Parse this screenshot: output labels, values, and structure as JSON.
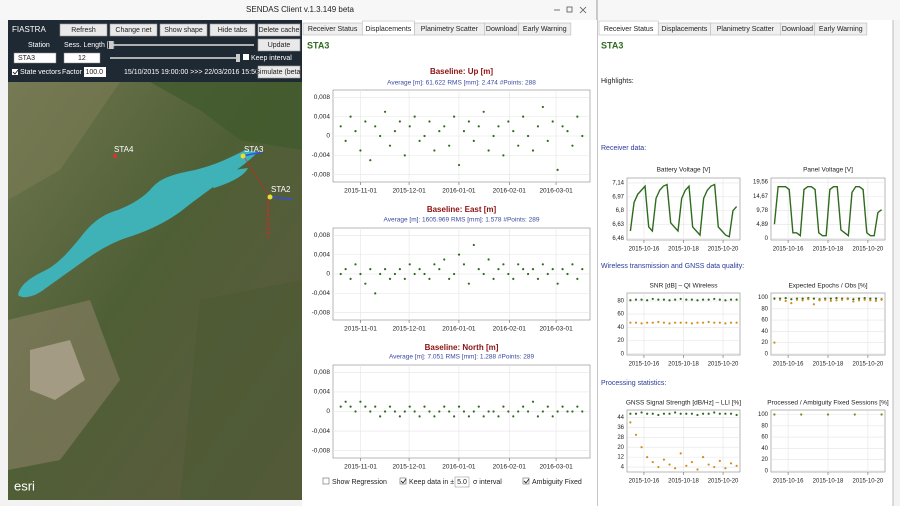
{
  "window": {
    "title": "SENDAS Client v.1.3.149 beta"
  },
  "toolbar": {
    "app_name": "FIASTRA",
    "buttons": [
      "Refresh",
      "Change net",
      "Show shape",
      "Hide tabs",
      "Delete cache"
    ],
    "station_label": "Station",
    "station_value": "STA3",
    "session_label": "Sess. Length [h]",
    "session_value": "12",
    "update": "Update",
    "keep_interval": "Keep interval",
    "state_vectors": "State vectors",
    "factor_label": "Factor",
    "factor_value": "100.0",
    "date_range": "15/10/2015 19:00:00 >>> 22/03/2016 15:50:24",
    "simulate": "Simulate (beta)"
  },
  "map": {
    "stations": [
      "STA4",
      "STA3",
      "STA2"
    ],
    "logo": "esri"
  },
  "displacements": {
    "tabs": [
      "Receiver Status",
      "Displacements",
      "Planimetry Scatter",
      "Download",
      "Early Warning"
    ],
    "station": "STA3",
    "charts": [
      {
        "type": "scatter",
        "title": "Baseline: Up [m]",
        "subtitle": "Average [m]: 61.622 RMS [mm]: 2.474 #Points: 288",
        "ylim": [
          -0.0095,
          0.0095
        ],
        "yticks": [
          {
            "value": 0.008,
            "label": "0,008"
          },
          {
            "value": 0.004,
            "label": "0,004"
          },
          0,
          {
            "value": -0.004,
            "label": "-0,004"
          },
          {
            "value": -0.008,
            "label": "-0,008"
          }
        ],
        "xticks": [
          "2015-11-01",
          "2015-12-01",
          "2016-01-01",
          "2016-02-01",
          "2016-03-01"
        ],
        "series": [
          {
            "color": "#2e6b1f",
            "values": [
              0.002,
              -0.001,
              0.004,
              0.001,
              -0.003,
              0.003,
              -0.005,
              0.002,
              0.0,
              0.005,
              -0.002,
              0.001,
              0.003,
              -0.004,
              0.002,
              0.004,
              -0.001,
              0.0,
              0.003,
              -0.003,
              0.001,
              0.002,
              -0.002,
              0.004,
              -0.006,
              0.001,
              0.003,
              -0.001,
              0.002,
              0.005,
              -0.003,
              0.0,
              0.002,
              -0.004,
              0.003,
              0.001,
              -0.002,
              0.004,
              0.0,
              -0.003,
              0.002,
              0.006,
              -0.001,
              0.003,
              -0.007,
              0.002,
              0.001,
              -0.002,
              0.004,
              0.0
            ]
          }
        ]
      },
      {
        "type": "scatter",
        "title": "Baseline: East [m]",
        "subtitle": "Average [m]: 1605.969 RMS [mm]: 1.578 #Points: 289",
        "ylim": [
          -0.0095,
          0.0095
        ],
        "yticks": [
          {
            "value": 0.008,
            "label": "0,008"
          },
          {
            "value": 0.004,
            "label": "0,004"
          },
          0,
          {
            "value": -0.004,
            "label": "-0,004"
          },
          {
            "value": -0.008,
            "label": "-0,008"
          }
        ],
        "xticks": [
          "2015-11-01",
          "2015-12-01",
          "2016-01-01",
          "2016-02-01",
          "2016-03-01"
        ],
        "series": [
          {
            "color": "#2e6b1f",
            "values": [
              0.0,
              0.001,
              -0.001,
              0.002,
              0.0,
              -0.002,
              0.001,
              -0.004,
              0.0,
              0.001,
              -0.001,
              0.0,
              0.001,
              -0.001,
              0.002,
              0.0,
              0.001,
              0.0,
              -0.001,
              0.002,
              0.001,
              0.003,
              -0.001,
              0.0,
              0.004,
              0.002,
              -0.002,
              0.006,
              0.001,
              0.0,
              0.003,
              -0.001,
              0.001,
              0.002,
              0.0,
              -0.001,
              0.002,
              0.001,
              0.0,
              0.001,
              -0.001,
              0.002,
              0.0,
              0.001,
              -0.002,
              0.001,
              0.0,
              0.002,
              -0.001,
              0.001
            ]
          }
        ]
      },
      {
        "type": "scatter",
        "title": "Baseline: North [m]",
        "subtitle": "Average [m]: 7.051 RMS [mm]: 1.288 #Points: 289",
        "ylim": [
          -0.0095,
          0.0095
        ],
        "yticks": [
          {
            "value": 0.008,
            "label": "0,008"
          },
          {
            "value": 0.004,
            "label": "0,004"
          },
          0,
          {
            "value": -0.004,
            "label": "-0,004"
          },
          {
            "value": -0.008,
            "label": "-0,008"
          }
        ],
        "xticks": [
          "2015-11-01",
          "2015-12-01",
          "2016-01-01",
          "2016-02-01",
          "2016-03-01"
        ],
        "series": [
          {
            "color": "#2e6b1f",
            "values": [
              0.001,
              0.002,
              0.001,
              0.0,
              0.002,
              0.001,
              0.0,
              0.001,
              -0.001,
              0.0,
              0.001,
              0.0,
              -0.001,
              0.0,
              0.001,
              0.0,
              -0.001,
              0.001,
              0.0,
              -0.001,
              0.0,
              0.001,
              0.0,
              -0.001,
              0.001,
              0.0,
              -0.001,
              0.0,
              0.001,
              -0.001,
              0.0,
              0.0,
              -0.001,
              0.001,
              0.0,
              -0.001,
              0.0,
              0.001,
              0.0,
              0.002,
              -0.001,
              0.0,
              0.001,
              -0.001,
              0.0,
              0.001,
              0.0,
              0.0,
              0.001,
              0.0
            ]
          }
        ]
      }
    ],
    "footer": {
      "show_regression": "Show Regression",
      "keep_data": "Keep data in ±",
      "sigma": "5.0",
      "sigma_interval": "σ interval",
      "ambiguity_fixed": "Ambiguity Fixed"
    }
  },
  "status": {
    "tabs": [
      "Receiver Status",
      "Displacements",
      "Planimetry Scatter",
      "Download",
      "Early Warning"
    ],
    "station": "STA3",
    "highlights": "Highlights:",
    "sections": [
      "Receiver data:",
      "Wireless transmission and GNSS data quality:",
      "Processing statistics:"
    ],
    "charts": [
      {
        "type": "line",
        "title": "Battery Voltage [V]",
        "ylim": [
          6.44,
          7.2
        ],
        "yticks": [
          {
            "value": 7.14,
            "label": "7,14"
          },
          {
            "value": 6.97,
            "label": "6,97"
          },
          {
            "value": 6.8,
            "label": "6,8"
          },
          {
            "value": 6.63,
            "label": "6,63"
          },
          {
            "value": 6.46,
            "label": "6,46"
          }
        ],
        "xticks": [
          "2015-10-16",
          "2015-10-18",
          "2015-10-20"
        ],
        "series": [
          {
            "color": "#2e6b1f",
            "values": [
              6.55,
              6.9,
              7.0,
              7.05,
              7.1,
              6.6,
              6.55,
              6.95,
              7.05,
              7.1,
              7.12,
              6.65,
              6.6,
              6.55,
              6.95,
              7.05,
              7.1,
              6.6,
              6.55,
              6.5,
              6.95,
              7.05,
              7.1,
              7.12,
              6.6,
              6.55,
              6.5,
              6.48,
              6.8,
              6.85
            ]
          }
        ]
      },
      {
        "type": "line",
        "title": "Panel Voltage [V]",
        "ylim": [
          -0.5,
          21
        ],
        "yticks": [
          {
            "value": 19.56,
            "label": "19,56"
          },
          {
            "value": 14.67,
            "label": "14,67"
          },
          {
            "value": 9.78,
            "label": "9,78"
          },
          {
            "value": 4.89,
            "label": "4,89"
          },
          0
        ],
        "xticks": [
          "2015-10-16",
          "2015-10-18",
          "2015-10-20"
        ],
        "series": [
          {
            "color": "#2e6b1f",
            "values": [
              5,
              18,
              18,
              18,
              17,
              2,
              2,
              1,
              17,
              18,
              18,
              17,
              2,
              1,
              1,
              17,
              18,
              18,
              3,
              2,
              1,
              16,
              18,
              18,
              17,
              2,
              1,
              1,
              9,
              10
            ]
          }
        ]
      },
      {
        "type": "scatter",
        "title": "SNR [dB] – QI Wireless",
        "ylim": [
          -2,
          92
        ],
        "yticks": [
          80,
          60,
          40,
          20,
          0
        ],
        "xticks": [
          "2015-10-16",
          "2015-10-18",
          "2015-10-20"
        ],
        "series": [
          {
            "color": "#2e6b1f",
            "values": [
              81,
              82,
              82,
              81,
              83,
              82,
              82,
              81,
              82,
              83,
              82,
              82,
              81,
              82,
              82,
              83,
              82,
              81,
              82,
              82
            ]
          },
          {
            "color": "#d58a1a",
            "values": [
              47,
              47,
              46,
              47,
              47,
              48,
              47,
              46,
              47,
              47,
              47,
              46,
              47,
              47,
              48,
              47,
              47,
              46,
              47,
              47
            ]
          }
        ]
      },
      {
        "type": "scatter",
        "title": "Expected Epochs / Obs [%]",
        "ylim": [
          -2,
          108
        ],
        "yticks": [
          100,
          80,
          60,
          40,
          20,
          0
        ],
        "xticks": [
          "2015-10-16",
          "2015-10-18",
          "2015-10-20"
        ],
        "series": [
          {
            "color": "#2e6b1f",
            "values": [
              98,
              98,
              99,
              97,
              98,
              98,
              99,
              98,
              97,
              98,
              98,
              99,
              98,
              98,
              97,
              98,
              99,
              98,
              98,
              97
            ]
          },
          {
            "color": "#d58a1a",
            "values": [
              20,
              96,
              94,
              90,
              96,
              95,
              97,
              88,
              95,
              96,
              94,
              95,
              96,
              97,
              93,
              95,
              96,
              95,
              94,
              96
            ]
          }
        ]
      },
      {
        "type": "scatter",
        "title": "GNSS Signal Strength [dB/Hz] – LLI [%]",
        "ylim": [
          0,
          50
        ],
        "yticks": [
          44,
          36,
          28,
          20,
          12,
          4
        ],
        "xticks": [
          "2015-10-16",
          "2015-10-18",
          "2015-10-20"
        ],
        "series": [
          {
            "color": "#2e6b1f",
            "values": [
              47,
              47,
              48,
              47,
              47,
              46,
              47,
              47,
              48,
              47,
              47,
              47,
              46,
              47,
              47,
              48,
              47,
              47,
              47,
              46
            ]
          },
          {
            "color": "#d58a1a",
            "values": [
              40,
              30,
              20,
              12,
              8,
              4,
              10,
              6,
              3,
              15,
              5,
              8,
              2,
              12,
              6,
              4,
              9,
              3,
              7,
              5
            ]
          }
        ]
      },
      {
        "type": "scatter",
        "title": "Processed / Ambiguity Fixed Sessions [%]",
        "ylim": [
          -2,
          108
        ],
        "yticks": [
          100,
          80,
          60,
          40,
          20,
          0
        ],
        "xticks": [
          "2015-10-16",
          "2015-10-18",
          "2015-10-20"
        ],
        "series": [
          {
            "color": "#7a8a1a",
            "values": [
              100,
              100,
              100,
              100,
              100
            ]
          }
        ]
      }
    ]
  }
}
